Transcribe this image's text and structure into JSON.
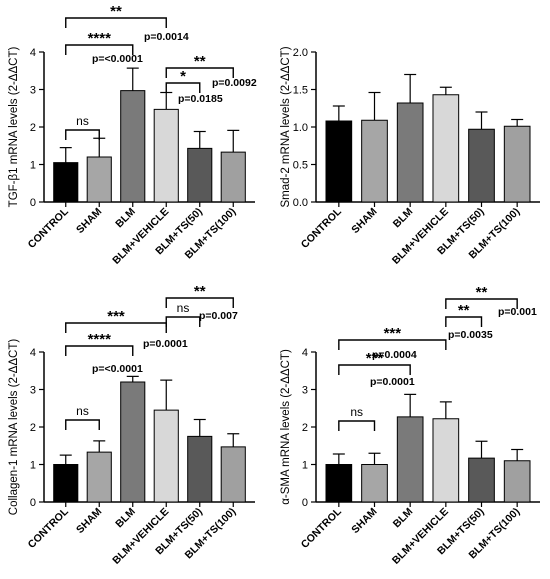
{
  "categories": [
    "CONTROL",
    "SHAM",
    "BLM",
    "BLM+VEHICLE",
    "BLM+TS(50)",
    "BLM+TS(100)"
  ],
  "bar_colors": [
    "#000000",
    "#a6a6a6",
    "#7a7a7a",
    "#d8d8d8",
    "#595959",
    "#a0a0a0"
  ],
  "chart_data": [
    {
      "type": "bar",
      "ylabel": "TGF-β1 mRNA levels (2-ΔΔCT)",
      "ylim": [
        0,
        4
      ],
      "yticks": [
        0,
        1,
        2,
        3,
        4
      ],
      "values": [
        1.05,
        1.2,
        2.97,
        2.47,
        1.43,
        1.33
      ],
      "errors": [
        0.4,
        0.5,
        0.6,
        0.45,
        0.45,
        0.58
      ],
      "annotations": [
        {
          "from": 0,
          "to": 1,
          "label": "ns"
        },
        {
          "from": 0,
          "to": 2,
          "label": "****",
          "pvalue": "p=<0.0001"
        },
        {
          "from": 0,
          "to": 3,
          "label": "**",
          "pvalue": "p=0.0014"
        },
        {
          "from": 3,
          "to": 4,
          "label": "*",
          "pvalue": "p=0.0185"
        },
        {
          "from": 3,
          "to": 5,
          "label": "**",
          "pvalue": "p=0.0092"
        }
      ]
    },
    {
      "type": "bar",
      "ylabel": "Smad-2 mRNA levels (2-ΔΔCT)",
      "ylim": [
        0,
        2
      ],
      "yticks": [
        0.0,
        0.5,
        1.0,
        1.5,
        2.0
      ],
      "values": [
        1.08,
        1.09,
        1.32,
        1.43,
        0.97,
        1.01
      ],
      "errors": [
        0.2,
        0.37,
        0.38,
        0.1,
        0.23,
        0.09
      ],
      "annotations": []
    },
    {
      "type": "bar",
      "ylabel": "Collagen-1 mRNA levels (2-ΔΔCT)",
      "ylim": [
        0,
        4
      ],
      "yticks": [
        0,
        1,
        2,
        3,
        4
      ],
      "values": [
        1.0,
        1.33,
        3.2,
        2.45,
        1.75,
        1.47
      ],
      "errors": [
        0.25,
        0.3,
        0.15,
        0.8,
        0.45,
        0.35
      ],
      "annotations": [
        {
          "from": 0,
          "to": 1,
          "label": "ns"
        },
        {
          "from": 0,
          "to": 2,
          "label": "****",
          "pvalue": "p=<0.0001"
        },
        {
          "from": 0,
          "to": 3,
          "label": "***",
          "pvalue": "p=0.0001"
        },
        {
          "from": 3,
          "to": 4,
          "label": "ns"
        },
        {
          "from": 3,
          "to": 5,
          "label": "**",
          "pvalue": "p=0.007"
        }
      ]
    },
    {
      "type": "bar",
      "ylabel": "α-SMA mRNA levels (2-ΔΔCT)",
      "ylim": [
        0,
        4
      ],
      "yticks": [
        0,
        1,
        2,
        3,
        4
      ],
      "values": [
        1.0,
        1.0,
        2.27,
        2.22,
        1.17,
        1.1
      ],
      "errors": [
        0.28,
        0.3,
        0.6,
        0.45,
        0.45,
        0.3
      ],
      "annotations": [
        {
          "from": 0,
          "to": 1,
          "label": "ns"
        },
        {
          "from": 0,
          "to": 2,
          "label": "***",
          "pvalue": "p=0.0001"
        },
        {
          "from": 0,
          "to": 3,
          "label": "***",
          "pvalue": "p=0.0004"
        },
        {
          "from": 3,
          "to": 4,
          "label": "**",
          "pvalue": "p=0.0035"
        },
        {
          "from": 3,
          "to": 5,
          "label": "**",
          "pvalue": "p=0.001"
        }
      ]
    }
  ]
}
